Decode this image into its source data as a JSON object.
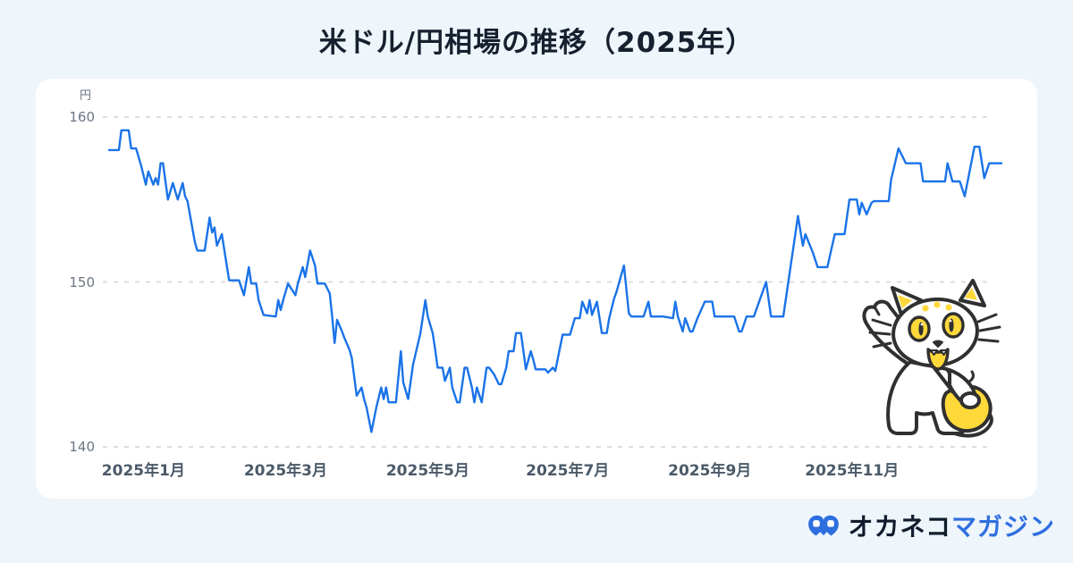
{
  "title": "米ドル/円相場の推移（2025年）",
  "colors": {
    "page_bg": "#eef5fb",
    "card_bg": "#ffffff",
    "title_text": "#16202e",
    "line": "#1a73e8",
    "grid": "#d9dde3",
    "axis_text": "#6b7684",
    "month_text": "#4b5a69",
    "logo_dark": "#101b2c",
    "logo_blue": "#2e6fe0",
    "mascot_yellow": "#ffd83a",
    "mascot_outline": "#303030"
  },
  "icons": {
    "logo_mark": "okaneko-cat-face-icon",
    "mascot": "white-cat-waving-with-yellow-coin-purse"
  },
  "footer": {
    "logo_text_dark": "オカネコ",
    "logo_text_blue": "マガジン"
  },
  "chart_data": {
    "type": "line",
    "title": "米ドル/円相場の推移（2025年）",
    "ylabel": "円",
    "yticks": [
      160,
      150,
      140
    ],
    "ylim": [
      139.5,
      160.5
    ],
    "grid": "dashed horizontal only",
    "legend": "none",
    "x_axis": {
      "domain_days": [
        0,
        364
      ],
      "labels": [
        "2025年1月",
        "2025年3月",
        "2025年5月",
        "2025年7月",
        "2025年9月",
        "2025年11月"
      ],
      "tick_days": [
        14,
        72,
        130,
        187,
        245,
        303
      ]
    },
    "series": [
      {
        "name": "米ドル/円",
        "unit": "円",
        "points": [
          [
            0,
            158
          ],
          [
            4,
            158
          ],
          [
            5,
            159.2
          ],
          [
            8,
            159.2
          ],
          [
            9,
            158.1
          ],
          [
            11,
            158.1
          ],
          [
            13,
            157.1
          ],
          [
            15,
            155.9
          ],
          [
            16,
            156.7
          ],
          [
            18,
            155.9
          ],
          [
            19,
            156.3
          ],
          [
            20,
            155.9
          ],
          [
            21,
            157.2
          ],
          [
            22,
            157.2
          ],
          [
            24,
            155
          ],
          [
            26,
            156
          ],
          [
            28,
            155
          ],
          [
            30,
            156
          ],
          [
            31,
            155.2
          ],
          [
            32,
            154.9
          ],
          [
            35,
            152.4
          ],
          [
            36,
            151.9
          ],
          [
            39,
            151.9
          ],
          [
            41,
            153.9
          ],
          [
            42,
            153
          ],
          [
            43,
            153.3
          ],
          [
            44,
            152.2
          ],
          [
            46,
            152.9
          ],
          [
            48,
            151
          ],
          [
            49,
            150.1
          ],
          [
            53,
            150.1
          ],
          [
            55,
            149.2
          ],
          [
            57,
            150.9
          ],
          [
            58,
            149.9
          ],
          [
            60,
            149.9
          ],
          [
            61,
            148.9
          ],
          [
            63,
            148
          ],
          [
            68,
            147.9
          ],
          [
            69,
            148.9
          ],
          [
            70,
            148.3
          ],
          [
            71,
            148.9
          ],
          [
            73,
            149.9
          ],
          [
            76,
            149.2
          ],
          [
            77,
            149.9
          ],
          [
            79,
            150.9
          ],
          [
            80,
            150.3
          ],
          [
            82,
            151.9
          ],
          [
            84,
            151
          ],
          [
            85,
            149.9
          ],
          [
            88,
            149.9
          ],
          [
            90,
            149.3
          ],
          [
            91,
            147.9
          ],
          [
            92,
            146.3
          ],
          [
            93,
            147.7
          ],
          [
            95,
            147
          ],
          [
            96,
            146.6
          ],
          [
            98,
            145.9
          ],
          [
            99,
            145.4
          ],
          [
            101,
            143.1
          ],
          [
            103,
            143.6
          ],
          [
            104,
            142.9
          ],
          [
            105,
            142.4
          ],
          [
            107,
            140.9
          ],
          [
            109,
            142.4
          ],
          [
            111,
            143.6
          ],
          [
            112,
            142.9
          ],
          [
            113,
            143.6
          ],
          [
            114,
            142.7
          ],
          [
            117,
            142.7
          ],
          [
            119,
            145.8
          ],
          [
            120,
            143.9
          ],
          [
            122,
            142.9
          ],
          [
            124,
            145
          ],
          [
            127,
            146.9
          ],
          [
            129,
            148.9
          ],
          [
            130,
            147.9
          ],
          [
            132,
            146.9
          ],
          [
            133,
            145.9
          ],
          [
            134,
            144.8
          ],
          [
            136,
            144.8
          ],
          [
            137,
            144
          ],
          [
            139,
            144.8
          ],
          [
            140,
            143.6
          ],
          [
            142,
            142.7
          ],
          [
            143,
            142.7
          ],
          [
            145,
            144.8
          ],
          [
            146,
            144.8
          ],
          [
            148,
            143.6
          ],
          [
            149,
            142.7
          ],
          [
            150,
            143.6
          ],
          [
            152,
            142.7
          ],
          [
            154,
            144.8
          ],
          [
            155,
            144.8
          ],
          [
            157,
            144.4
          ],
          [
            159,
            143.8
          ],
          [
            160,
            143.8
          ],
          [
            162,
            144.8
          ],
          [
            163,
            145.8
          ],
          [
            165,
            145.8
          ],
          [
            166,
            146.9
          ],
          [
            168,
            146.9
          ],
          [
            169,
            145.8
          ],
          [
            170,
            144.7
          ],
          [
            172,
            145.8
          ],
          [
            173,
            145.3
          ],
          [
            174,
            144.7
          ],
          [
            176,
            144.7
          ],
          [
            178,
            144.7
          ],
          [
            179,
            144.5
          ],
          [
            181,
            144.8
          ],
          [
            182,
            144.6
          ],
          [
            185,
            146.8
          ],
          [
            188,
            146.8
          ],
          [
            190,
            147.8
          ],
          [
            192,
            147.8
          ],
          [
            193,
            148.8
          ],
          [
            195,
            148.1
          ],
          [
            196,
            148.9
          ],
          [
            197,
            148
          ],
          [
            199,
            148.8
          ],
          [
            201,
            146.9
          ],
          [
            203,
            146.9
          ],
          [
            204,
            147.8
          ],
          [
            206,
            149
          ],
          [
            207,
            149.4
          ],
          [
            210,
            151
          ],
          [
            212,
            148.1
          ],
          [
            213,
            147.9
          ],
          [
            218,
            147.9
          ],
          [
            220,
            148.8
          ],
          [
            221,
            147.9
          ],
          [
            226,
            147.9
          ],
          [
            230,
            147.8
          ],
          [
            231,
            148.8
          ],
          [
            232,
            147.9
          ],
          [
            234,
            147
          ],
          [
            235,
            147.8
          ],
          [
            237,
            147
          ],
          [
            238,
            147
          ],
          [
            240,
            147.8
          ],
          [
            243,
            148.8
          ],
          [
            246,
            148.8
          ],
          [
            247,
            147.9
          ],
          [
            255,
            147.9
          ],
          [
            257,
            147
          ],
          [
            258,
            147
          ],
          [
            260,
            147.9
          ],
          [
            263,
            147.9
          ],
          [
            268,
            150
          ],
          [
            270,
            147.9
          ],
          [
            275,
            147.9
          ],
          [
            281,
            154
          ],
          [
            283,
            152.2
          ],
          [
            284,
            152.9
          ],
          [
            287,
            151.8
          ],
          [
            289,
            150.9
          ],
          [
            293,
            150.9
          ],
          [
            296,
            152.9
          ],
          [
            300,
            152.9
          ],
          [
            302,
            155
          ],
          [
            305,
            155
          ],
          [
            306,
            154.1
          ],
          [
            307,
            154.8
          ],
          [
            309,
            154.1
          ],
          [
            311,
            154.8
          ],
          [
            312,
            154.9
          ],
          [
            318,
            154.9
          ],
          [
            319,
            156.2
          ],
          [
            322,
            158.1
          ],
          [
            325,
            157.2
          ],
          [
            331,
            157.2
          ],
          [
            332,
            156.1
          ],
          [
            339,
            156.1
          ],
          [
            341,
            156.1
          ],
          [
            342,
            157.2
          ],
          [
            344,
            156.1
          ],
          [
            347,
            156.1
          ],
          [
            349,
            155.2
          ],
          [
            353,
            158.2
          ],
          [
            355,
            158.2
          ],
          [
            357,
            156.3
          ],
          [
            359,
            157.2
          ],
          [
            364,
            157.2
          ]
        ]
      }
    ]
  }
}
